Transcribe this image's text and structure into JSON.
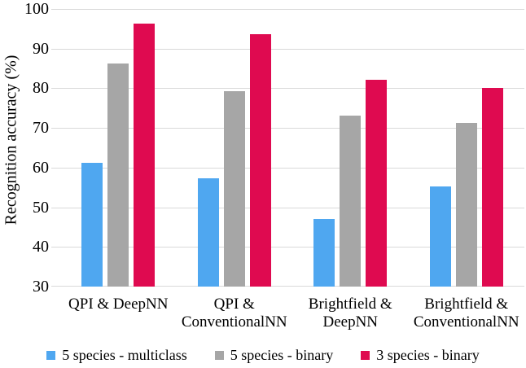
{
  "chart_data": {
    "type": "bar",
    "title": "",
    "xlabel": "",
    "ylabel": "Recognition accuracy (%)",
    "ylim": [
      30,
      100
    ],
    "ytick_step": 10,
    "yticks": [
      100,
      90,
      80,
      70,
      60,
      50,
      40,
      30
    ],
    "grid": "horizontal",
    "legend_position": "bottom",
    "categories": [
      "QPI & DeepNN",
      "QPI & ConventionalNN",
      "Brightfield & DeepNN",
      "Brightfield & ConventionalNN"
    ],
    "category_label_lines": [
      [
        "QPI & DeepNN"
      ],
      [
        "QPI &",
        "ConventionalNN"
      ],
      [
        "Brightfield &",
        "DeepNN"
      ],
      [
        "Brightfield &",
        "ConventionalNN"
      ]
    ],
    "series": [
      {
        "name": "5 species - multiclass",
        "color": "#4FA7F0",
        "values": [
          61.3,
          57.2,
          47.1,
          55.2
        ]
      },
      {
        "name": "5 species - binary",
        "color": "#A6A6A6",
        "values": [
          86.2,
          79.2,
          73.1,
          71.3
        ]
      },
      {
        "name": "3 species - binary",
        "color": "#DF0A50",
        "values": [
          96.4,
          93.6,
          82.1,
          80.0
        ]
      }
    ]
  },
  "colors": {
    "gridline": "#D9D9D9",
    "text": "#000000",
    "background": "#FFFFFF"
  }
}
